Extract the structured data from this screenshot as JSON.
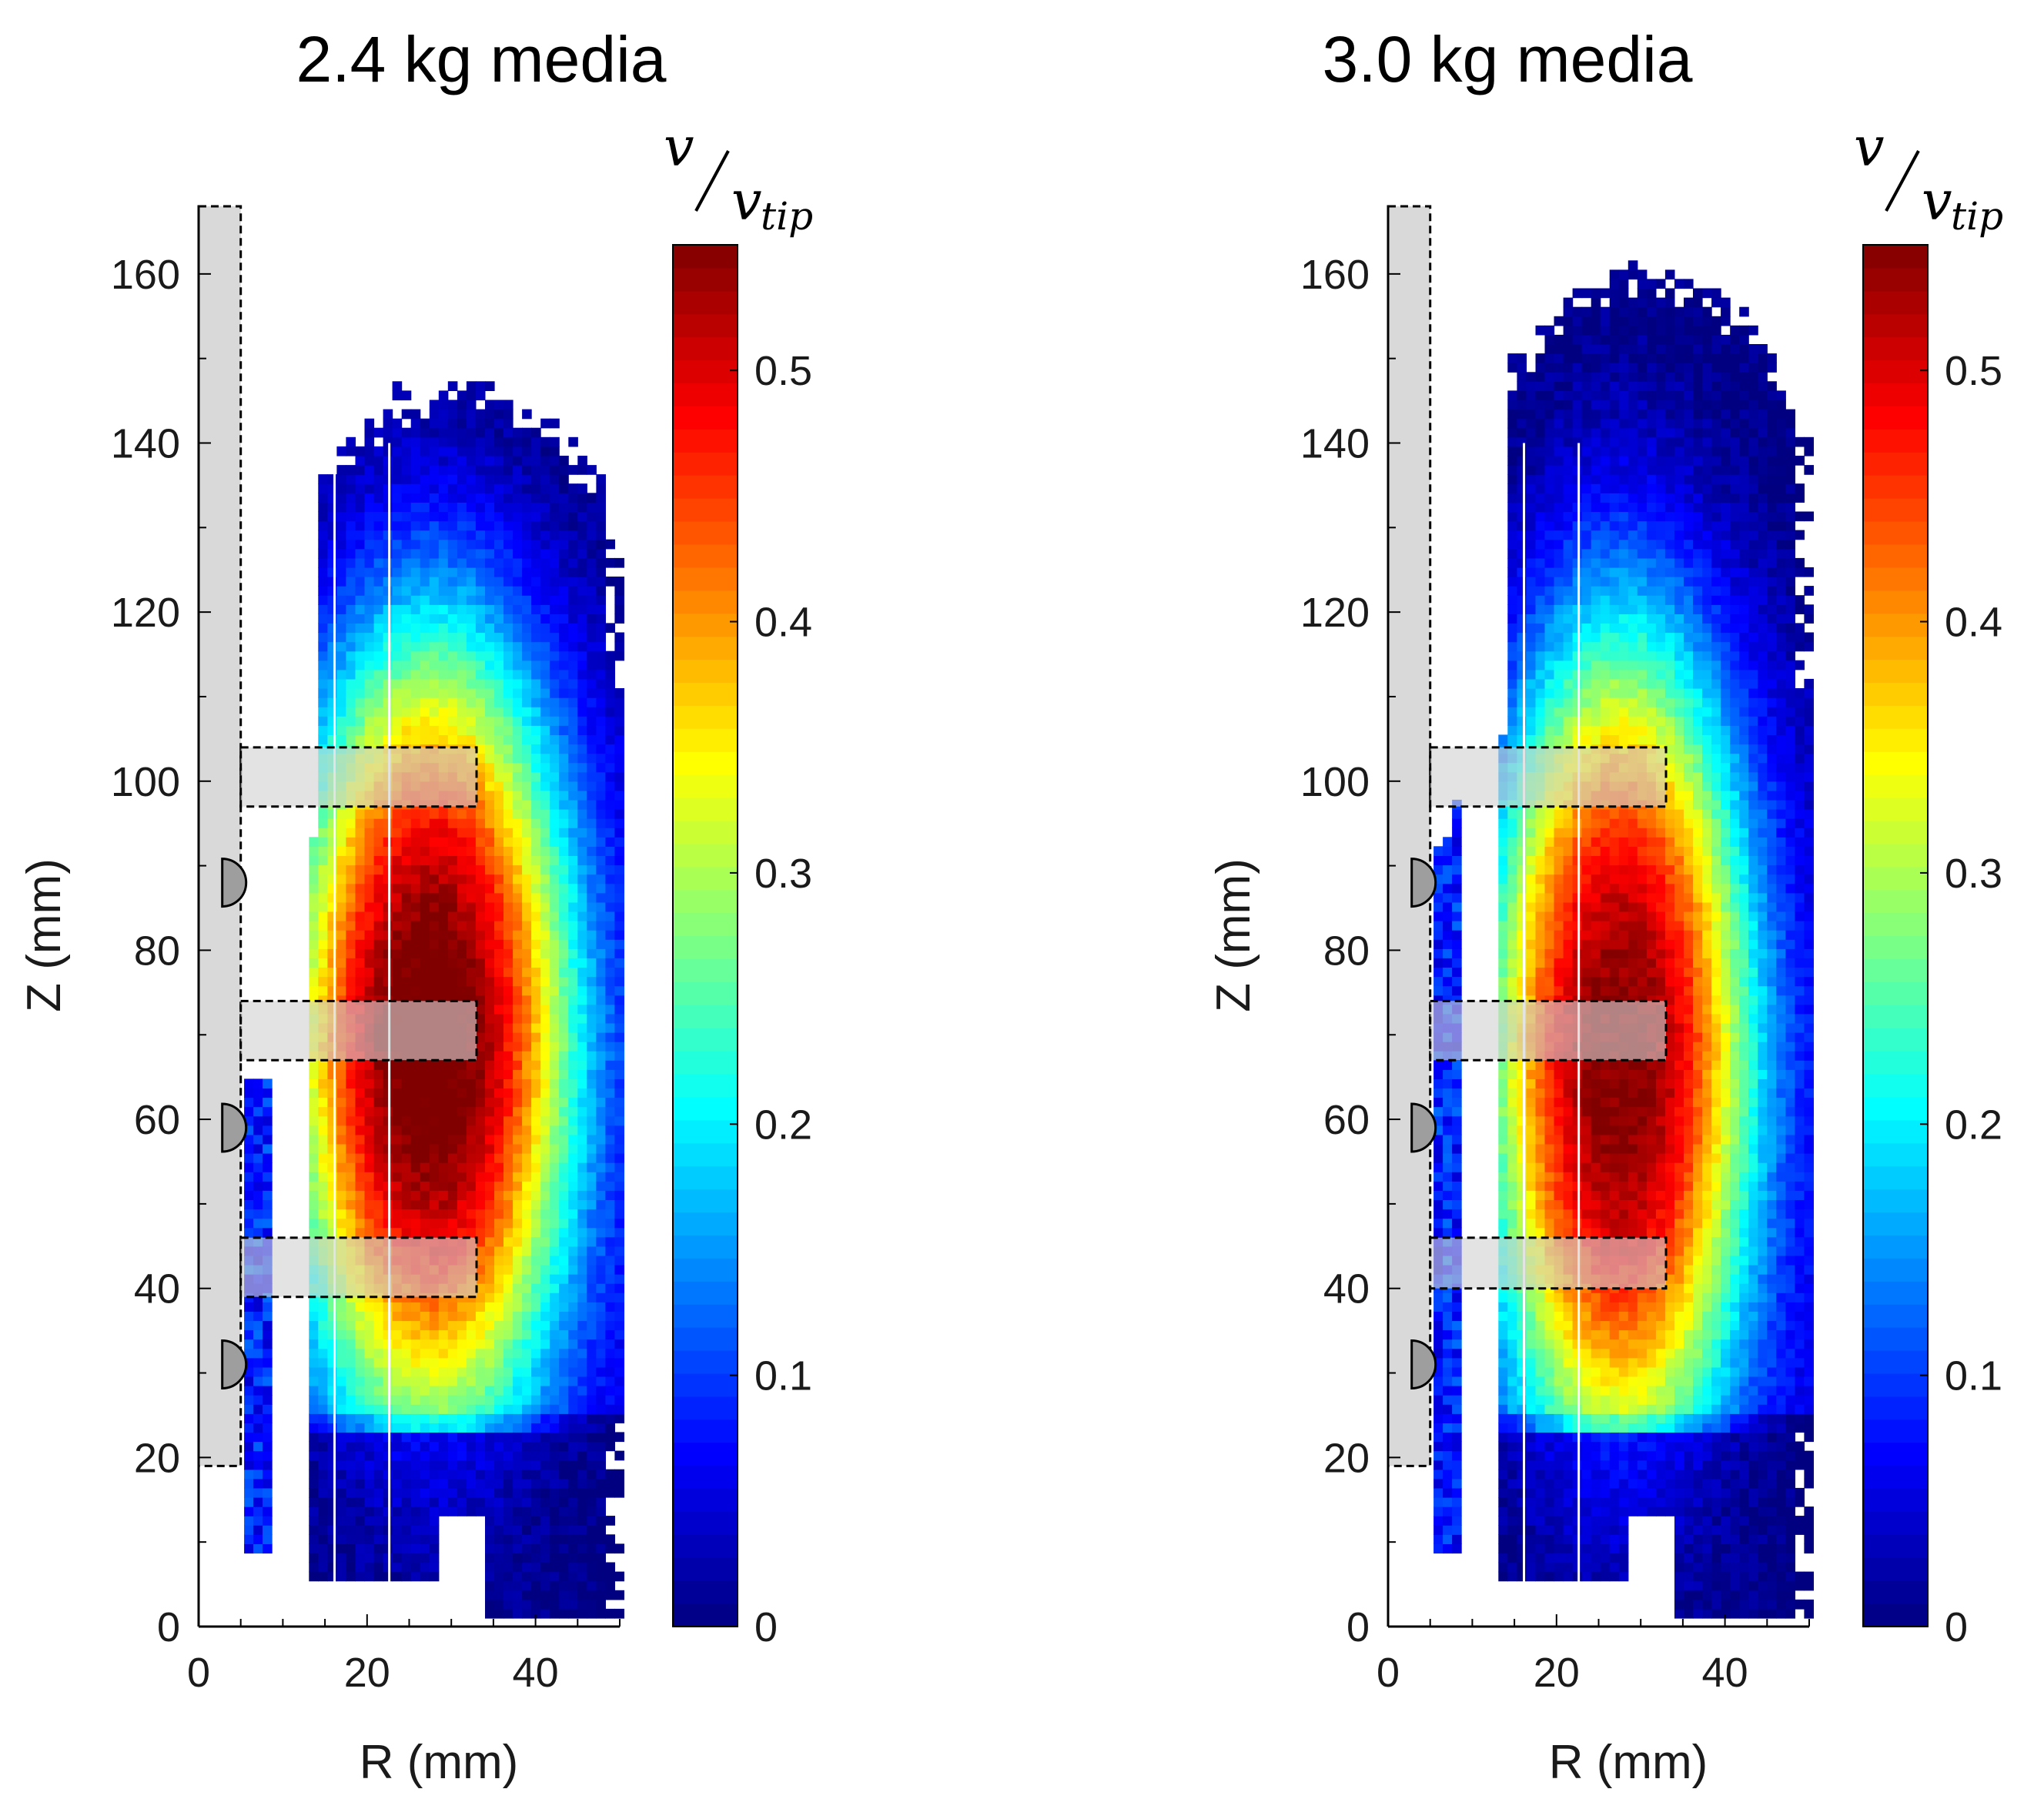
{
  "chart_data": [
    {
      "type": "heatmap",
      "title": "2.4 kg media",
      "xlabel": "R (mm)",
      "ylabel": "Z (mm)",
      "xlim": [
        0,
        50
      ],
      "ylim": [
        0,
        168
      ],
      "xticks": [
        "0",
        "20",
        "40"
      ],
      "yticks": [
        "0",
        "20",
        "40",
        "60",
        "80",
        "100",
        "120",
        "140",
        "160"
      ],
      "colorbar": {
        "label_main": "v",
        "label_denominator": "v",
        "label_subscript": "tip",
        "range": [
          0,
          0.55
        ],
        "ticks": [
          "0",
          "0.1",
          "0.2",
          "0.3",
          "0.4",
          "0.5"
        ],
        "colormap": "jet"
      },
      "field": {
        "core_center_mm": [
          27,
          70
        ],
        "core_half_width_r_mm": 13,
        "core_half_height_z_mm": 36,
        "peak_value": 0.52,
        "outer_extent_top_mm": 146,
        "outer_extent_right_mm": 50,
        "outer_extent_bottom_mm": 2
      },
      "impeller_discs_z_mm": [
        [
          39,
          46
        ],
        [
          67,
          74
        ],
        [
          97,
          104
        ]
      ],
      "impeller_disc_r_range_mm": [
        5,
        33
      ],
      "shaft_r_range_mm": [
        0,
        5
      ],
      "shaft_z_range_mm": [
        19,
        168
      ],
      "shaft_bumps_z_mm": [
        31,
        59,
        88
      ]
    },
    {
      "type": "heatmap",
      "title": "3.0 kg media",
      "xlabel": "R (mm)",
      "ylabel": "Z (mm)",
      "xlim": [
        0,
        50
      ],
      "ylim": [
        0,
        168
      ],
      "xticks": [
        "0",
        "20",
        "40"
      ],
      "yticks": [
        "0",
        "20",
        "40",
        "60",
        "80",
        "100",
        "120",
        "140",
        "160"
      ],
      "colorbar": {
        "label_main": "v",
        "label_denominator": "v",
        "label_subscript": "tip",
        "range": [
          0,
          0.55
        ],
        "ticks": [
          "0",
          "0.1",
          "0.2",
          "0.3",
          "0.4",
          "0.5"
        ],
        "colormap": "jet"
      },
      "field": {
        "core_center_mm": [
          27,
          68
        ],
        "core_half_width_r_mm": 12,
        "core_half_height_z_mm": 38,
        "peak_value": 0.5,
        "outer_extent_top_mm": 159,
        "outer_extent_right_mm": 50,
        "outer_extent_bottom_mm": 2
      },
      "impeller_discs_z_mm": [
        [
          40,
          46
        ],
        [
          67,
          74
        ],
        [
          97,
          104
        ]
      ],
      "impeller_disc_r_range_mm": [
        5,
        33
      ],
      "shaft_r_range_mm": [
        0,
        5
      ],
      "shaft_z_range_mm": [
        19,
        168
      ],
      "shaft_bumps_z_mm": [
        31,
        59,
        88
      ]
    }
  ]
}
